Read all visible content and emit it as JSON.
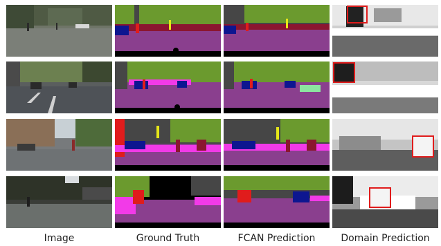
{
  "columns": [
    {
      "key": "image",
      "caption": "Image"
    },
    {
      "key": "ground_truth",
      "caption": "Ground Truth"
    },
    {
      "key": "fcan_prediction",
      "caption": "FCAN Prediction"
    },
    {
      "key": "domain_prediction",
      "caption": "Domain Prediction"
    }
  ],
  "rows": [
    {
      "scene": "street-scene-1"
    },
    {
      "scene": "street-scene-2"
    },
    {
      "scene": "street-scene-3"
    },
    {
      "scene": "street-scene-4"
    }
  ],
  "colors": {
    "road": "#8a3f8e",
    "vegetation": "#6b9a2e",
    "building": "#464646",
    "sky": "#4a7ec0",
    "car": "#0d1690",
    "person": "#e01c1c",
    "sidewalk": "#f23ae8",
    "pole": "#999999",
    "sign": "#e6e619",
    "ego": "#000000",
    "highlight_box": "#e01c1c"
  }
}
